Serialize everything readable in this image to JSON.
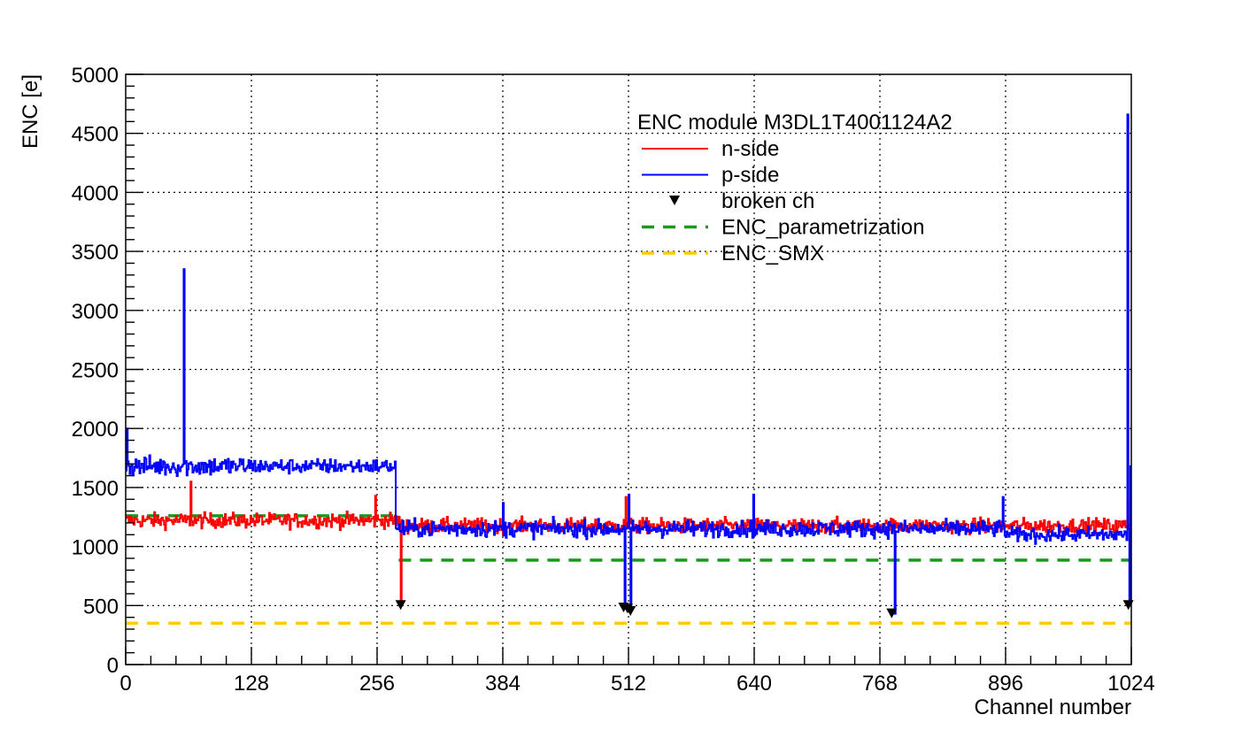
{
  "chart_data": {
    "type": "line",
    "xlabel": "Channel number",
    "ylabel": "ENC [e]",
    "xlim": [
      0,
      1024
    ],
    "ylim": [
      0,
      5000
    ],
    "x_ticks": [
      0,
      128,
      256,
      384,
      512,
      640,
      768,
      896,
      1024
    ],
    "y_ticks": [
      0,
      500,
      1000,
      1500,
      2000,
      2500,
      3000,
      3500,
      4000,
      4500,
      5000
    ],
    "grid": true,
    "legend": {
      "title": "ENC module M3DL1T4001124A2",
      "placement": "top-right",
      "entries": [
        {
          "label": "n-side",
          "style": "line",
          "color": "#ff0000"
        },
        {
          "label": "p-side",
          "style": "line",
          "color": "#0000ff"
        },
        {
          "label": "broken ch",
          "style": "marker",
          "color": "#000000"
        },
        {
          "label": "ENC_parametrization",
          "style": "dashed",
          "color": "#1a9a1a"
        },
        {
          "label": "ENC_SMX",
          "style": "dashed",
          "color": "#ffcc00"
        }
      ]
    },
    "series": [
      {
        "name": "n-side",
        "color": "#ff0000",
        "segments": [
          {
            "x_start": 0,
            "x_end": 280,
            "mean": 1220,
            "noise": 45
          },
          {
            "x_start": 280,
            "x_end": 1024,
            "mean": 1175,
            "noise": 45
          }
        ],
        "spikes": [
          {
            "x": 66,
            "y": 1550
          },
          {
            "x": 254,
            "y": 1430
          },
          {
            "x": 280,
            "y": 500
          },
          {
            "x": 509,
            "y": 1420
          },
          {
            "x": 1020,
            "y": 1380
          }
        ]
      },
      {
        "name": "p-side",
        "color": "#0000ff",
        "segments": [
          {
            "x_start": 0,
            "x_end": 128,
            "mean": 1680,
            "noise": 60
          },
          {
            "x_start": 128,
            "x_end": 275,
            "mean": 1680,
            "noise": 45
          },
          {
            "x_start": 275,
            "x_end": 896,
            "mean": 1150,
            "noise": 50
          },
          {
            "x_start": 896,
            "x_end": 1024,
            "mean": 1100,
            "noise": 45
          }
        ],
        "spikes": [
          {
            "x": 1,
            "y": 2000
          },
          {
            "x": 59,
            "y": 3350
          },
          {
            "x": 384,
            "y": 1370
          },
          {
            "x": 512,
            "y": 1440
          },
          {
            "x": 639,
            "y": 1440
          },
          {
            "x": 893,
            "y": 1420
          },
          {
            "x": 1020,
            "y": 4660
          },
          {
            "x": 1023,
            "y": 1680
          }
        ],
        "dips": [
          {
            "x": 508,
            "y": 500
          },
          {
            "x": 514,
            "y": 460
          },
          {
            "x": 783,
            "y": 430
          },
          {
            "x": 1022,
            "y": 500
          }
        ]
      },
      {
        "name": "ENC_parametrization",
        "color": "#1a9a1a",
        "steps": [
          {
            "x_start": 0,
            "x_end": 273,
            "y": 1260
          },
          {
            "x_start": 278,
            "x_end": 1024,
            "y": 885
          }
        ]
      },
      {
        "name": "ENC_SMX",
        "color": "#ffcc00",
        "steps": [
          {
            "x_start": 0,
            "x_end": 1024,
            "y": 350
          }
        ]
      }
    ],
    "broken_channels": [
      {
        "x": 280,
        "y": 500
      },
      {
        "x": 507,
        "y": 480
      },
      {
        "x": 511,
        "y": 470
      },
      {
        "x": 514,
        "y": 450
      },
      {
        "x": 780,
        "y": 430
      },
      {
        "x": 1021,
        "y": 500
      }
    ]
  }
}
